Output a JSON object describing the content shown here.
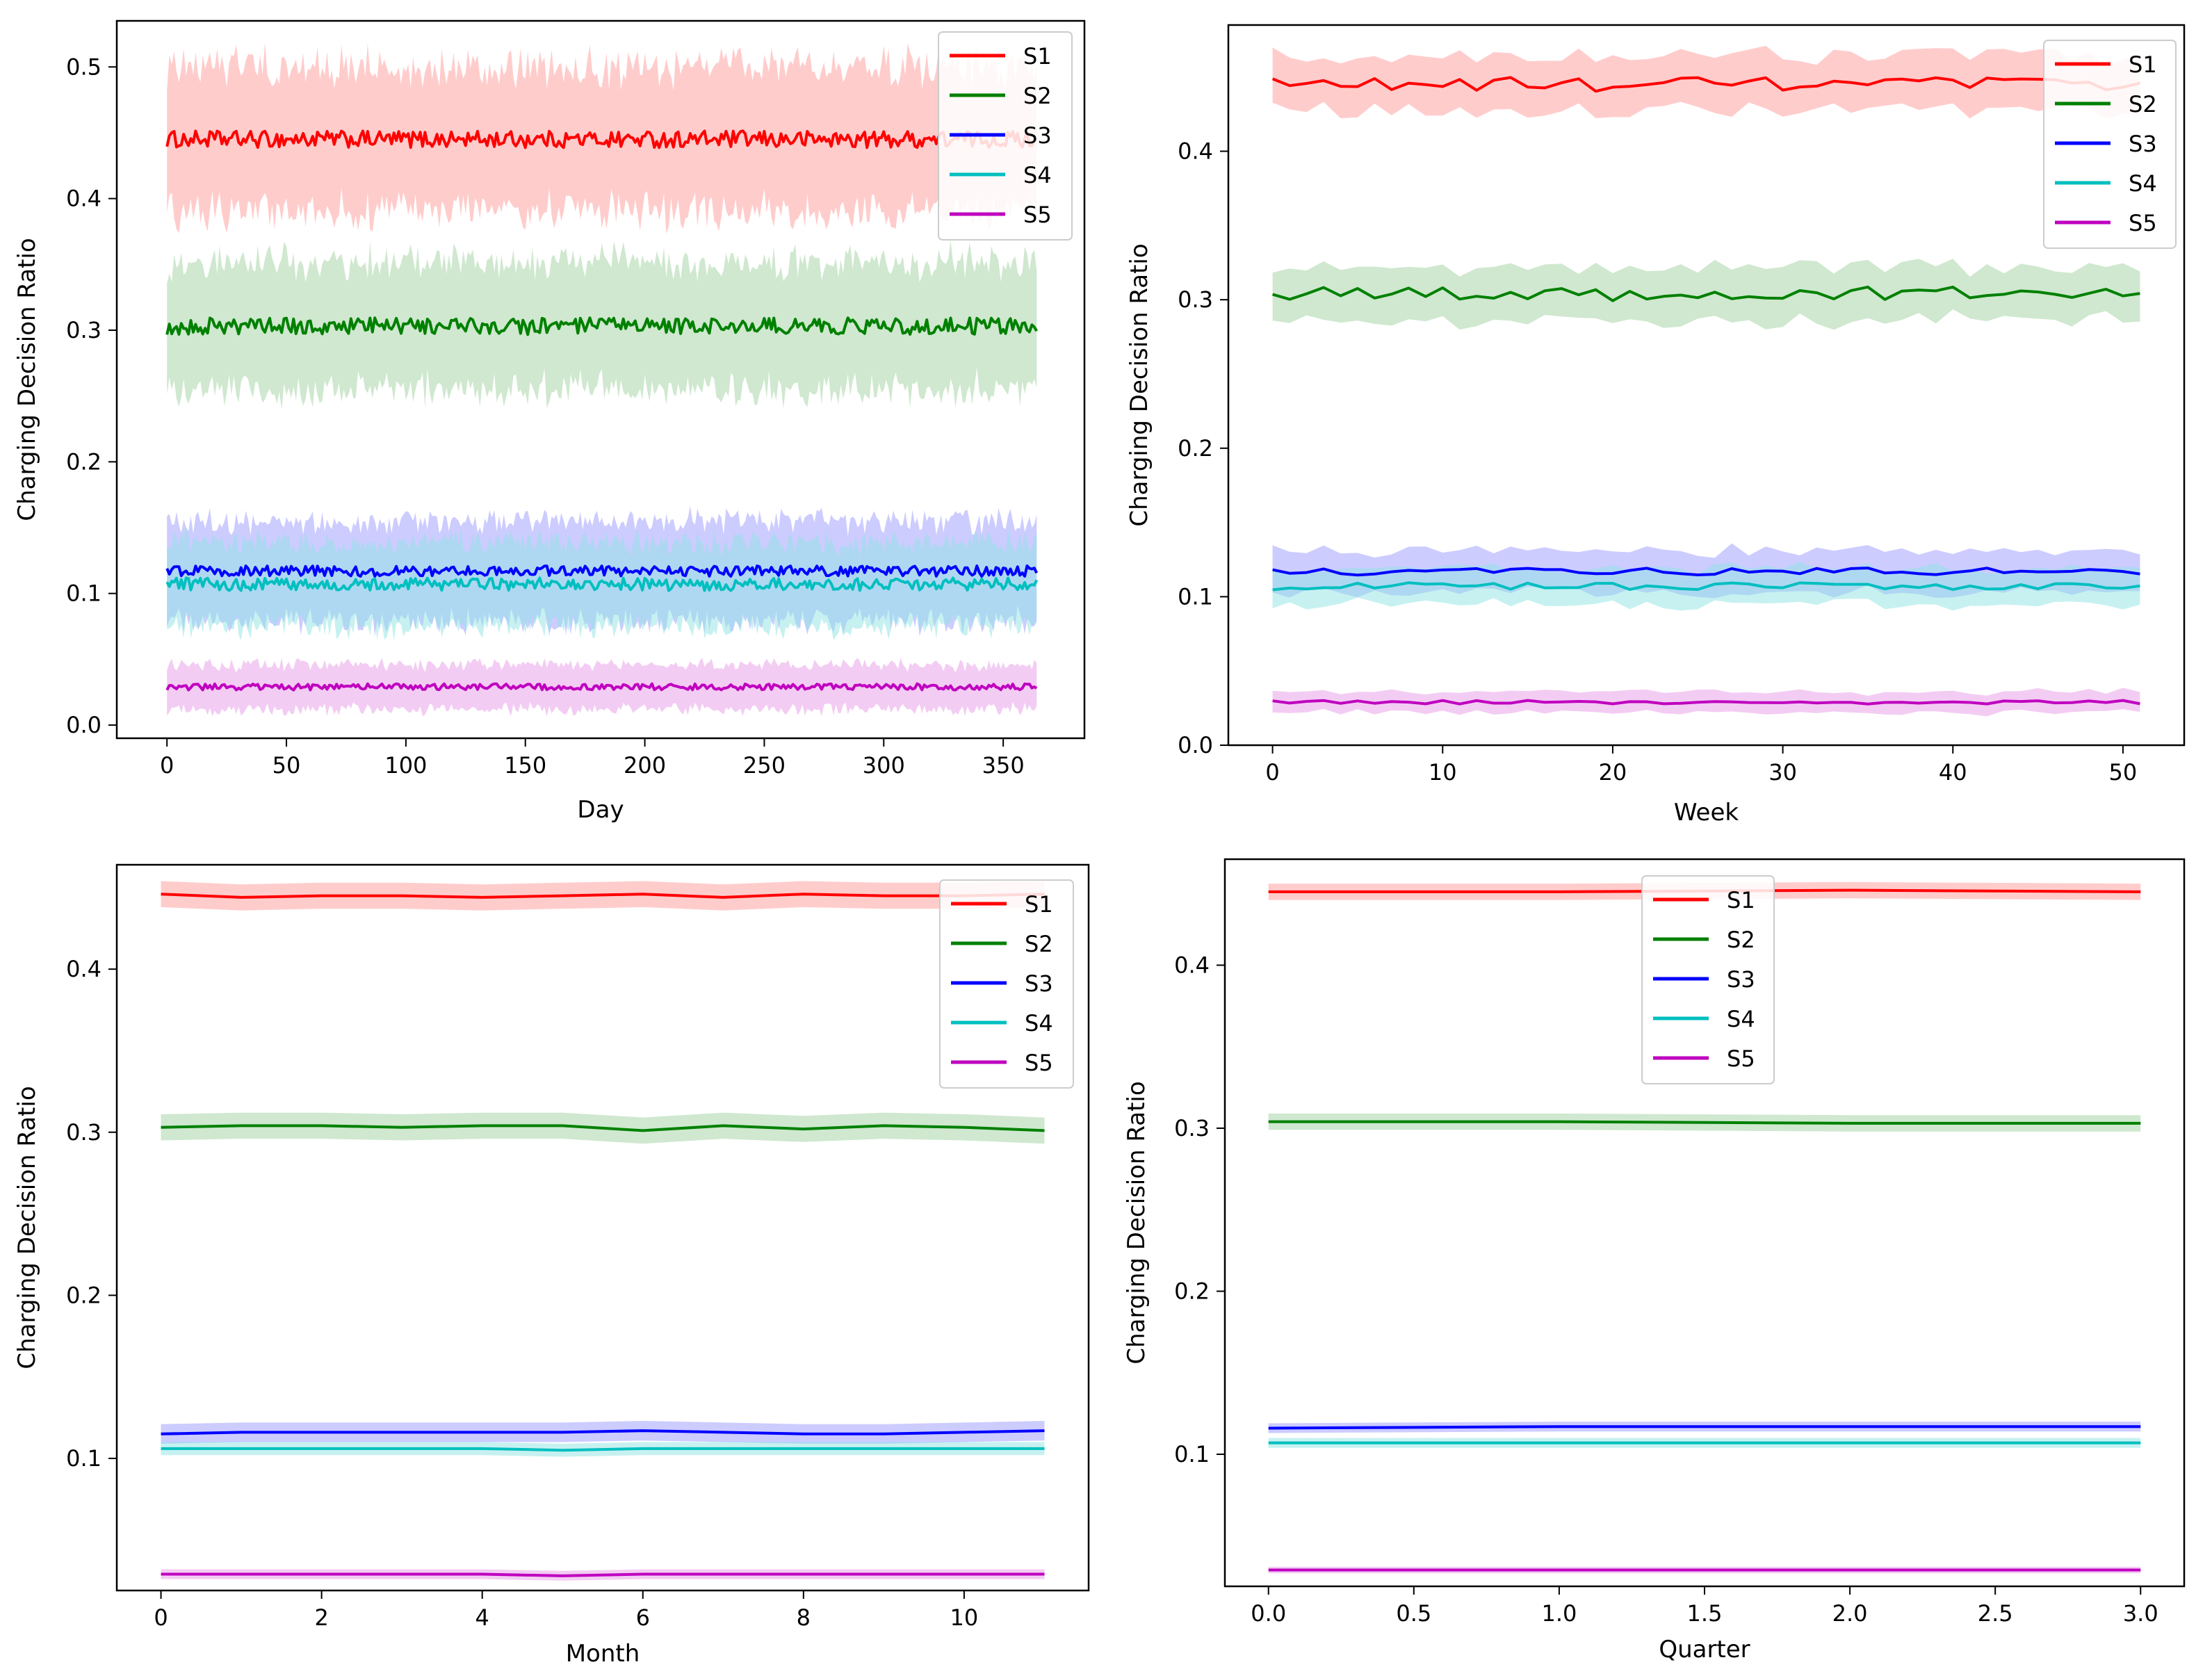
{
  "figure": {
    "ylabel": "Charging Decision Ratio",
    "series_names": [
      "S1",
      "S2",
      "S3",
      "S4",
      "S5"
    ],
    "colors": [
      "#ff0000",
      "#008000",
      "#0000ff",
      "#00bfbf",
      "#bf00bf"
    ],
    "band_colors": [
      "#ff9a9a",
      "#9fd19f",
      "#9a9aff",
      "#8fe3e3",
      "#e79ae7"
    ]
  },
  "chart_data": [
    {
      "type": "line",
      "title": "",
      "xlabel": "Day",
      "ylabel": "Charging Decision Ratio",
      "n_points": 365,
      "x_start": 0,
      "xlim": [
        -21,
        384
      ],
      "ylim": [
        -0.01,
        0.535
      ],
      "xticks": [
        0,
        50,
        100,
        150,
        200,
        250,
        300,
        350
      ],
      "yticks": [
        0.0,
        0.1,
        0.2,
        0.3,
        0.4,
        0.5
      ],
      "legend_position": "top-right",
      "series": [
        {
          "name": "S1",
          "mean": 0.445,
          "noise": 0.004,
          "band": 0.055
        },
        {
          "name": "S2",
          "mean": 0.303,
          "noise": 0.004,
          "band": 0.048
        },
        {
          "name": "S3",
          "mean": 0.117,
          "noise": 0.0025,
          "band": 0.038
        },
        {
          "name": "S4",
          "mean": 0.107,
          "noise": 0.003,
          "band": 0.032
        },
        {
          "name": "S5",
          "mean": 0.029,
          "noise": 0.0015,
          "band": 0.017
        }
      ]
    },
    {
      "type": "line",
      "title": "",
      "xlabel": "Week",
      "ylabel": "Charging Decision Ratio",
      "n_points": 52,
      "x_start": 0,
      "xlim": [
        -2.6,
        53.6
      ],
      "ylim": [
        0.0,
        0.485
      ],
      "xticks": [
        0,
        10,
        20,
        30,
        40,
        50
      ],
      "yticks": [
        0.0,
        0.1,
        0.2,
        0.3,
        0.4
      ],
      "legend_position": "top-right",
      "series": [
        {
          "name": "S1",
          "mean": 0.445,
          "noise": 0.003,
          "band": 0.018
        },
        {
          "name": "S2",
          "mean": 0.304,
          "noise": 0.003,
          "band": 0.018
        },
        {
          "name": "S3",
          "mean": 0.117,
          "noise": 0.0015,
          "band": 0.014
        },
        {
          "name": "S4",
          "mean": 0.107,
          "noise": 0.0015,
          "band": 0.012
        },
        {
          "name": "S5",
          "mean": 0.029,
          "noise": 0.0008,
          "band": 0.007
        }
      ]
    },
    {
      "type": "line",
      "title": "",
      "xlabel": "Month",
      "ylabel": "Charging Decision Ratio",
      "n_points": 12,
      "x_start": 0,
      "xlim": [
        -0.55,
        11.55
      ],
      "ylim": [
        0.019,
        0.464
      ],
      "xticks": [
        0,
        2,
        4,
        6,
        8,
        10
      ],
      "yticks": [
        0.1,
        0.2,
        0.3,
        0.4
      ],
      "legend_position": "top-right",
      "series": [
        {
          "name": "S1",
          "values": [
            0.446,
            0.444,
            0.445,
            0.445,
            0.444,
            0.445,
            0.446,
            0.444,
            0.446,
            0.445,
            0.445,
            0.446
          ],
          "band": 0.008
        },
        {
          "name": "S2",
          "values": [
            0.303,
            0.304,
            0.304,
            0.303,
            0.304,
            0.304,
            0.301,
            0.304,
            0.302,
            0.304,
            0.303,
            0.301
          ],
          "band": 0.008
        },
        {
          "name": "S3",
          "values": [
            0.115,
            0.116,
            0.116,
            0.116,
            0.116,
            0.116,
            0.117,
            0.116,
            0.115,
            0.115,
            0.116,
            0.117
          ],
          "band": 0.006
        },
        {
          "name": "S4",
          "values": [
            0.106,
            0.106,
            0.106,
            0.106,
            0.106,
            0.105,
            0.106,
            0.106,
            0.106,
            0.106,
            0.106,
            0.106
          ],
          "band": 0.004
        },
        {
          "name": "S5",
          "values": [
            0.029,
            0.029,
            0.029,
            0.029,
            0.029,
            0.028,
            0.029,
            0.029,
            0.029,
            0.029,
            0.029,
            0.029
          ],
          "band": 0.003
        }
      ]
    },
    {
      "type": "line",
      "title": "",
      "xlabel": "Quarter",
      "ylabel": "Charging Decision Ratio",
      "n_points": 4,
      "x_start": 0,
      "xlim": [
        -0.15,
        3.15
      ],
      "ylim": [
        0.019,
        0.465
      ],
      "xticks": [
        0.0,
        0.5,
        1.0,
        1.5,
        2.0,
        2.5,
        3.0
      ],
      "yticks": [
        0.1,
        0.2,
        0.3,
        0.4
      ],
      "legend_position": "top-center",
      "series": [
        {
          "name": "S1",
          "values": [
            0.445,
            0.445,
            0.446,
            0.445
          ],
          "band": 0.005
        },
        {
          "name": "S2",
          "values": [
            0.304,
            0.304,
            0.303,
            0.303
          ],
          "band": 0.005
        },
        {
          "name": "S3",
          "values": [
            0.116,
            0.117,
            0.117,
            0.117
          ],
          "band": 0.003
        },
        {
          "name": "S4",
          "values": [
            0.107,
            0.107,
            0.107,
            0.107
          ],
          "band": 0.003
        },
        {
          "name": "S5",
          "values": [
            0.029,
            0.029,
            0.029,
            0.029
          ],
          "band": 0.002
        }
      ]
    }
  ]
}
